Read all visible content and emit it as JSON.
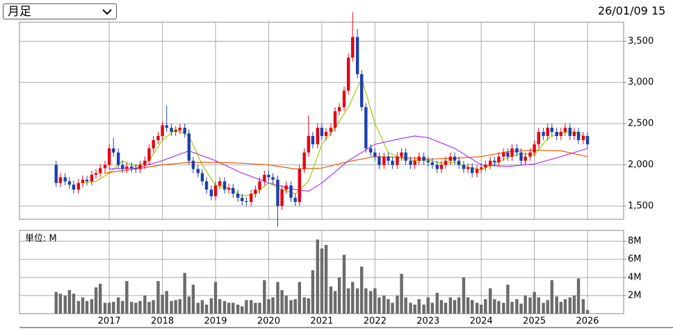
{
  "header": {
    "period": "月足",
    "timestamp": "26/01/09 15"
  },
  "chart_data": [
    {
      "type": "candlestick",
      "xlim": [
        2015.31,
        2026.68
      ],
      "ylim": [
        1340,
        3730
      ],
      "yticks": [
        {
          "value": 1500,
          "label": "1,500"
        },
        {
          "value": 2000,
          "label": "2,000"
        },
        {
          "value": 2500,
          "label": "2,500"
        },
        {
          "value": 3000,
          "label": "3,000"
        },
        {
          "value": 3500,
          "label": "3,500"
        }
      ],
      "grid": true,
      "up_color": "#e60012",
      "down_color": "#1c3faa",
      "x": [
        2016,
        2016.08,
        2016.17,
        2016.25,
        2016.33,
        2016.42,
        2016.5,
        2016.58,
        2016.67,
        2016.75,
        2016.83,
        2016.92,
        2017,
        2017.08,
        2017.17,
        2017.25,
        2017.33,
        2017.42,
        2017.5,
        2017.58,
        2017.67,
        2017.75,
        2017.83,
        2017.92,
        2018,
        2018.08,
        2018.17,
        2018.25,
        2018.33,
        2018.42,
        2018.5,
        2018.58,
        2018.67,
        2018.75,
        2018.83,
        2018.92,
        2019,
        2019.08,
        2019.17,
        2019.25,
        2019.33,
        2019.42,
        2019.5,
        2019.58,
        2019.67,
        2019.75,
        2019.83,
        2019.92,
        2020,
        2020.08,
        2020.17,
        2020.25,
        2020.33,
        2020.42,
        2020.5,
        2020.58,
        2020.67,
        2020.75,
        2020.83,
        2020.92,
        2021,
        2021.08,
        2021.17,
        2021.25,
        2021.33,
        2021.42,
        2021.5,
        2021.58,
        2021.67,
        2021.75,
        2021.83,
        2021.92,
        2022,
        2022.08,
        2022.17,
        2022.25,
        2022.33,
        2022.42,
        2022.5,
        2022.58,
        2022.67,
        2022.75,
        2022.83,
        2022.92,
        2023,
        2023.08,
        2023.17,
        2023.25,
        2023.33,
        2023.42,
        2023.5,
        2023.58,
        2023.67,
        2023.75,
        2023.83,
        2023.92,
        2024,
        2024.08,
        2024.17,
        2024.25,
        2024.33,
        2024.42,
        2024.5,
        2024.58,
        2024.67,
        2024.75,
        2024.83,
        2024.92,
        2025,
        2025.08,
        2025.17,
        2025.25,
        2025.33,
        2025.42,
        2025.5,
        2025.58,
        2025.67,
        2025.75,
        2025.83,
        2025.92,
        2026
      ],
      "open": [
        2000,
        1780,
        1850,
        1800,
        1760,
        1700,
        1780,
        1820,
        1800,
        1880,
        1900,
        1960,
        2000,
        2200,
        2150,
        2000,
        1950,
        1980,
        1960,
        1950,
        2000,
        2050,
        2200,
        2300,
        2350,
        2480,
        2450,
        2400,
        2420,
        2450,
        2380,
        2050,
        1950,
        1900,
        1800,
        1700,
        1620,
        1750,
        1800,
        1700,
        1720,
        1650,
        1600,
        1560,
        1550,
        1650,
        1700,
        1800,
        1880,
        1850,
        1820,
        1500,
        1700,
        1750,
        1600,
        1550,
        1950,
        2150,
        2350,
        2250,
        2450,
        2350,
        2400,
        2450,
        2650,
        2700,
        2900,
        3300,
        3550,
        3100,
        2700,
        2200,
        2150,
        2100,
        2000,
        2100,
        2050,
        2000,
        2100,
        2150,
        2050,
        2000,
        2050,
        2100,
        2050,
        2030,
        2000,
        1950,
        2000,
        2050,
        2100,
        2050,
        2000,
        1950,
        1970,
        1900,
        1950,
        1970,
        2000,
        2050,
        2030,
        2100,
        2150,
        2100,
        2200,
        2150,
        2050,
        2100,
        2150,
        2250,
        2400,
        2350,
        2450,
        2400,
        2350,
        2400,
        2450,
        2350,
        2400,
        2300,
        2350
      ],
      "high": [
        2050,
        1900,
        1900,
        1850,
        1810,
        1830,
        1870,
        1870,
        1930,
        1950,
        2010,
        2050,
        2250,
        2330,
        2200,
        2050,
        2030,
        2030,
        2010,
        2050,
        2100,
        2250,
        2350,
        2400,
        2530,
        2720,
        2500,
        2470,
        2500,
        2500,
        2430,
        2100,
        2000,
        1950,
        1850,
        1750,
        1800,
        1850,
        1850,
        1770,
        1770,
        1700,
        1650,
        1610,
        1700,
        1750,
        1850,
        1930,
        1930,
        1900,
        1870,
        1750,
        1800,
        1800,
        1650,
        2000,
        2200,
        2600,
        2400,
        2500,
        2500,
        2450,
        2500,
        2700,
        2750,
        2950,
        3350,
        3850,
        3650,
        3150,
        2750,
        2250,
        2200,
        2150,
        2150,
        2150,
        2100,
        2150,
        2200,
        2200,
        2100,
        2100,
        2150,
        2150,
        2100,
        2080,
        2050,
        2050,
        2100,
        2150,
        2150,
        2100,
        2050,
        2020,
        2020,
        2000,
        2020,
        2050,
        2100,
        2100,
        2150,
        2200,
        2200,
        2250,
        2250,
        2200,
        2150,
        2200,
        2300,
        2450,
        2450,
        2500,
        2500,
        2450,
        2450,
        2500,
        2500,
        2450,
        2450,
        2400,
        2400
      ],
      "low": [
        1730,
        1730,
        1750,
        1710,
        1650,
        1650,
        1730,
        1750,
        1750,
        1830,
        1850,
        1910,
        1950,
        2100,
        1950,
        1900,
        1900,
        1910,
        1900,
        1900,
        1950,
        2000,
        2150,
        2250,
        2300,
        2400,
        2350,
        2350,
        2370,
        2330,
        2000,
        1900,
        1850,
        1750,
        1650,
        1570,
        1570,
        1700,
        1650,
        1650,
        1600,
        1550,
        1510,
        1500,
        1500,
        1600,
        1650,
        1750,
        1800,
        1770,
        1250,
        1450,
        1650,
        1550,
        1500,
        1500,
        1900,
        2100,
        2200,
        2200,
        2300,
        2300,
        2350,
        2400,
        2600,
        2650,
        2850,
        3250,
        3050,
        2650,
        2150,
        2100,
        2050,
        1950,
        1950,
        2000,
        1950,
        1950,
        2050,
        2000,
        1950,
        1950,
        2000,
        2000,
        1980,
        1950,
        1900,
        1900,
        1950,
        2000,
        2000,
        1950,
        1900,
        1900,
        1850,
        1850,
        1900,
        1920,
        1950,
        1980,
        1980,
        2050,
        2050,
        2050,
        2100,
        2000,
        2000,
        2050,
        2100,
        2200,
        2300,
        2300,
        2350,
        2300,
        2300,
        2350,
        2300,
        2300,
        2250,
        2250,
        2200
      ],
      "close": [
        1780,
        1850,
        1800,
        1760,
        1700,
        1780,
        1820,
        1800,
        1880,
        1900,
        1960,
        2000,
        2200,
        2150,
        2000,
        1950,
        1980,
        1960,
        1950,
        2000,
        2050,
        2200,
        2300,
        2350,
        2480,
        2450,
        2400,
        2420,
        2450,
        2380,
        2050,
        1950,
        1900,
        1800,
        1700,
        1620,
        1750,
        1800,
        1700,
        1720,
        1650,
        1600,
        1560,
        1550,
        1650,
        1700,
        1800,
        1880,
        1850,
        1820,
        1500,
        1700,
        1750,
        1600,
        1550,
        1950,
        2150,
        2350,
        2250,
        2450,
        2350,
        2400,
        2450,
        2650,
        2700,
        2900,
        3300,
        3550,
        3100,
        2700,
        2200,
        2150,
        2100,
        2000,
        2100,
        2050,
        2000,
        2100,
        2150,
        2050,
        2000,
        2050,
        2100,
        2050,
        2030,
        2000,
        1950,
        2000,
        2050,
        2100,
        2050,
        2000,
        1950,
        1970,
        1900,
        1950,
        1970,
        2000,
        2050,
        2030,
        2100,
        2150,
        2100,
        2200,
        2150,
        2050,
        2100,
        2150,
        2250,
        2400,
        2350,
        2450,
        2400,
        2350,
        2400,
        2450,
        2350,
        2400,
        2300,
        2350,
        2250
      ],
      "series": [
        {
          "color": "#99cc00",
          "x": [
            2016.5,
            2016.75,
            2017,
            2017.25,
            2017.5,
            2017.75,
            2018,
            2018.25,
            2018.5,
            2018.75,
            2019,
            2019.25,
            2019.5,
            2019.75,
            2020,
            2020.25,
            2020.5,
            2020.75,
            2021,
            2021.25,
            2021.5,
            2021.75,
            2022,
            2022.25,
            2022.5,
            2022.75,
            2023,
            2023.25,
            2023.5,
            2023.75,
            2024,
            2024.25,
            2024.5,
            2024.75,
            2025,
            2025.25,
            2025.5,
            2025.75,
            2026
          ],
          "values": [
            1780,
            1800,
            1900,
            2050,
            1980,
            2050,
            2300,
            2430,
            2350,
            2000,
            1750,
            1720,
            1620,
            1650,
            1780,
            1700,
            1650,
            1800,
            2250,
            2450,
            2700,
            3050,
            2500,
            2150,
            2080,
            2050,
            2060,
            2020,
            2030,
            1970,
            1940,
            2010,
            2090,
            2140,
            2120,
            2320,
            2390,
            2400,
            2330
          ]
        },
        {
          "color": "#aa33ee",
          "x": [
            2017,
            2017.5,
            2018,
            2018.5,
            2019,
            2019.5,
            2020,
            2020.5,
            2020.75,
            2021,
            2021.5,
            2022,
            2022.5,
            2022.75,
            2023,
            2023.5,
            2024,
            2024.5,
            2025,
            2025.5,
            2026
          ],
          "values": [
            1950,
            1960,
            2050,
            2170,
            2050,
            1900,
            1780,
            1700,
            1680,
            1780,
            2050,
            2250,
            2320,
            2350,
            2330,
            2200,
            2000,
            1980,
            2010,
            2100,
            2200
          ]
        },
        {
          "color": "#ee5500",
          "x": [
            2016.9,
            2017.5,
            2018,
            2018.5,
            2019,
            2019.5,
            2020,
            2020.5,
            2021,
            2021.5,
            2022,
            2022.5,
            2023,
            2023.5,
            2024,
            2024.5,
            2025,
            2025.5,
            2026
          ],
          "values": [
            1900,
            1950,
            2000,
            2030,
            2030,
            2020,
            2000,
            1950,
            1960,
            2040,
            2100,
            2090,
            2070,
            2080,
            2100,
            2160,
            2180,
            2170,
            2100
          ]
        }
      ]
    },
    {
      "type": "bar",
      "unit_label": "単位: M",
      "color": "#6b6b6b",
      "xlim": [
        2015.31,
        2026.68
      ],
      "xticks": [
        2017,
        2018,
        2019,
        2020,
        2021,
        2022,
        2023,
        2024,
        2025,
        2026
      ],
      "ylim": [
        0,
        9.2
      ],
      "yticks": [
        {
          "value": 2,
          "label": "2M"
        },
        {
          "value": 4,
          "label": "4M"
        },
        {
          "value": 6,
          "label": "6M"
        },
        {
          "value": 8,
          "label": "8M"
        }
      ],
      "grid": true,
      "values": [
        2.4,
        2.2,
        2.0,
        2.6,
        2.2,
        1.4,
        1.8,
        1.4,
        1.6,
        2.9,
        3.3,
        1.2,
        1.2,
        1.3,
        1.8,
        1.4,
        3.6,
        1.3,
        1.2,
        1.4,
        2.0,
        1.3,
        1.5,
        3.6,
        2.1,
        2.5,
        1.4,
        1.5,
        1.6,
        4.5,
        1.9,
        3.2,
        1.2,
        1.5,
        1.0,
        1.7,
        3.5,
        1.6,
        1.4,
        1.2,
        1.2,
        1.0,
        0.8,
        1.5,
        1.5,
        1.2,
        1.2,
        3.7,
        1.6,
        1.8,
        3.5,
        2.6,
        2.0,
        1.5,
        1.6,
        3.5,
        1.8,
        1.7,
        4.8,
        8.2,
        7.2,
        7.6,
        3.0,
        2.5,
        4.0,
        6.5,
        2.8,
        3.5,
        2.8,
        5.2,
        2.8,
        2.5,
        2.8,
        1.8,
        2.0,
        1.6,
        1.2,
        2.0,
        4.4,
        1.8,
        1.2,
        1.0,
        1.6,
        1.0,
        1.8,
        1.2,
        2.3,
        1.5,
        1.2,
        1.8,
        1.5,
        1.8,
        4.0,
        1.8,
        1.5,
        1.2,
        1.0,
        1.6,
        2.8,
        1.6,
        1.4,
        1.2,
        3.2,
        1.3,
        1.6,
        1.1,
        2.0,
        1.8,
        2.4,
        1.8,
        1.2,
        1.5,
        3.7,
        1.9,
        1.3,
        1.6,
        1.8,
        2.0,
        3.9,
        1.6,
        0.4
      ]
    }
  ]
}
